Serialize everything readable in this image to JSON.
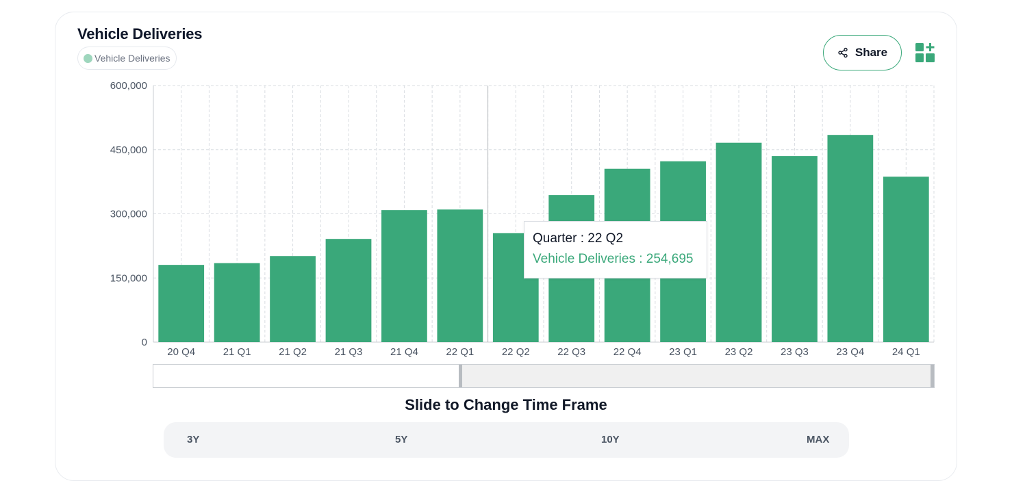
{
  "card": {
    "title": "Vehicle Deliveries",
    "legend_label": "Vehicle Deliveries",
    "share_label": "Share"
  },
  "colors": {
    "bar": "#3aa87a",
    "legend_dot": "#9ed6bd",
    "grid": "#d9dde2"
  },
  "chart_data": {
    "type": "bar",
    "title": "Vehicle Deliveries",
    "xlabel": "",
    "ylabel": "",
    "ylim": [
      0,
      600000
    ],
    "yticks": [
      0,
      150000,
      300000,
      450000,
      600000
    ],
    "ytick_labels": [
      "0",
      "150,000",
      "300,000",
      "450,000",
      "600,000"
    ],
    "grid": true,
    "categories": [
      "20 Q4",
      "21 Q1",
      "21 Q2",
      "21 Q3",
      "21 Q4",
      "22 Q1",
      "22 Q2",
      "22 Q3",
      "22 Q4",
      "23 Q1",
      "23 Q2",
      "23 Q3",
      "23 Q4",
      "24 Q1"
    ],
    "series": [
      {
        "name": "Vehicle Deliveries",
        "values": [
          180570,
          184800,
          201250,
          241300,
          308600,
          310050,
          254695,
          343830,
          405280,
          422880,
          466140,
          435060,
          484510,
          386810
        ]
      }
    ],
    "highlight_index": 6
  },
  "tooltip": {
    "line1": "Quarter : 22 Q2",
    "line2": "Vehicle Deliveries : 254,695"
  },
  "slider": {
    "caption": "Slide to Change Time Frame"
  },
  "ranges": [
    "3Y",
    "5Y",
    "10Y",
    "MAX"
  ]
}
